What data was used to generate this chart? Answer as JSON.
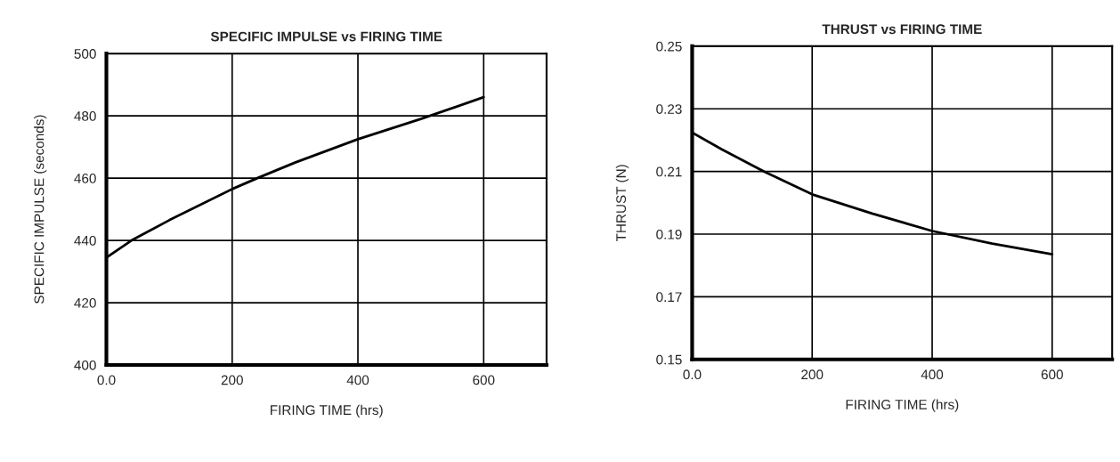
{
  "chart_data": [
    {
      "type": "line",
      "title": "SPECIFIC IMPULSE vs FIRING TIME",
      "xlabel": "FIRING TIME (hrs)",
      "ylabel": "SPECIFIC IMPULSE (seconds)",
      "x": [
        0,
        40,
        100,
        200,
        240,
        300,
        400,
        500,
        600
      ],
      "series": [
        {
          "color": "#000000",
          "values": [
            434.5,
            440,
            446.5,
            456.5,
            460,
            465,
            472.5,
            479,
            486
          ]
        }
      ],
      "xlim": [
        0,
        700
      ],
      "xticks": [
        {
          "value": 0,
          "label": "0.0"
        },
        200,
        400,
        600
      ],
      "ylim": [
        400,
        500
      ],
      "yticks": [
        400,
        420,
        440,
        460,
        480,
        500
      ],
      "grid": true,
      "legend": false
    },
    {
      "type": "line",
      "title": "THRUST vs FIRING TIME",
      "xlabel": "FIRING TIME (hrs)",
      "ylabel": "THRUST (N)",
      "x": [
        0,
        50,
        120,
        200,
        300,
        400,
        500,
        600
      ],
      "series": [
        {
          "color": "#000000",
          "values": [
            0.2224,
            0.217,
            0.21,
            0.2027,
            0.1966,
            0.191,
            0.187,
            0.1836
          ]
        }
      ],
      "xlim": [
        0,
        700
      ],
      "xticks": [
        {
          "value": 0,
          "label": "0.0"
        },
        200,
        400,
        600
      ],
      "ylim": [
        0.15,
        0.25
      ],
      "yticks": [
        0.15,
        0.17,
        0.19,
        0.21,
        0.23,
        0.25
      ],
      "grid": true,
      "legend": false
    }
  ]
}
